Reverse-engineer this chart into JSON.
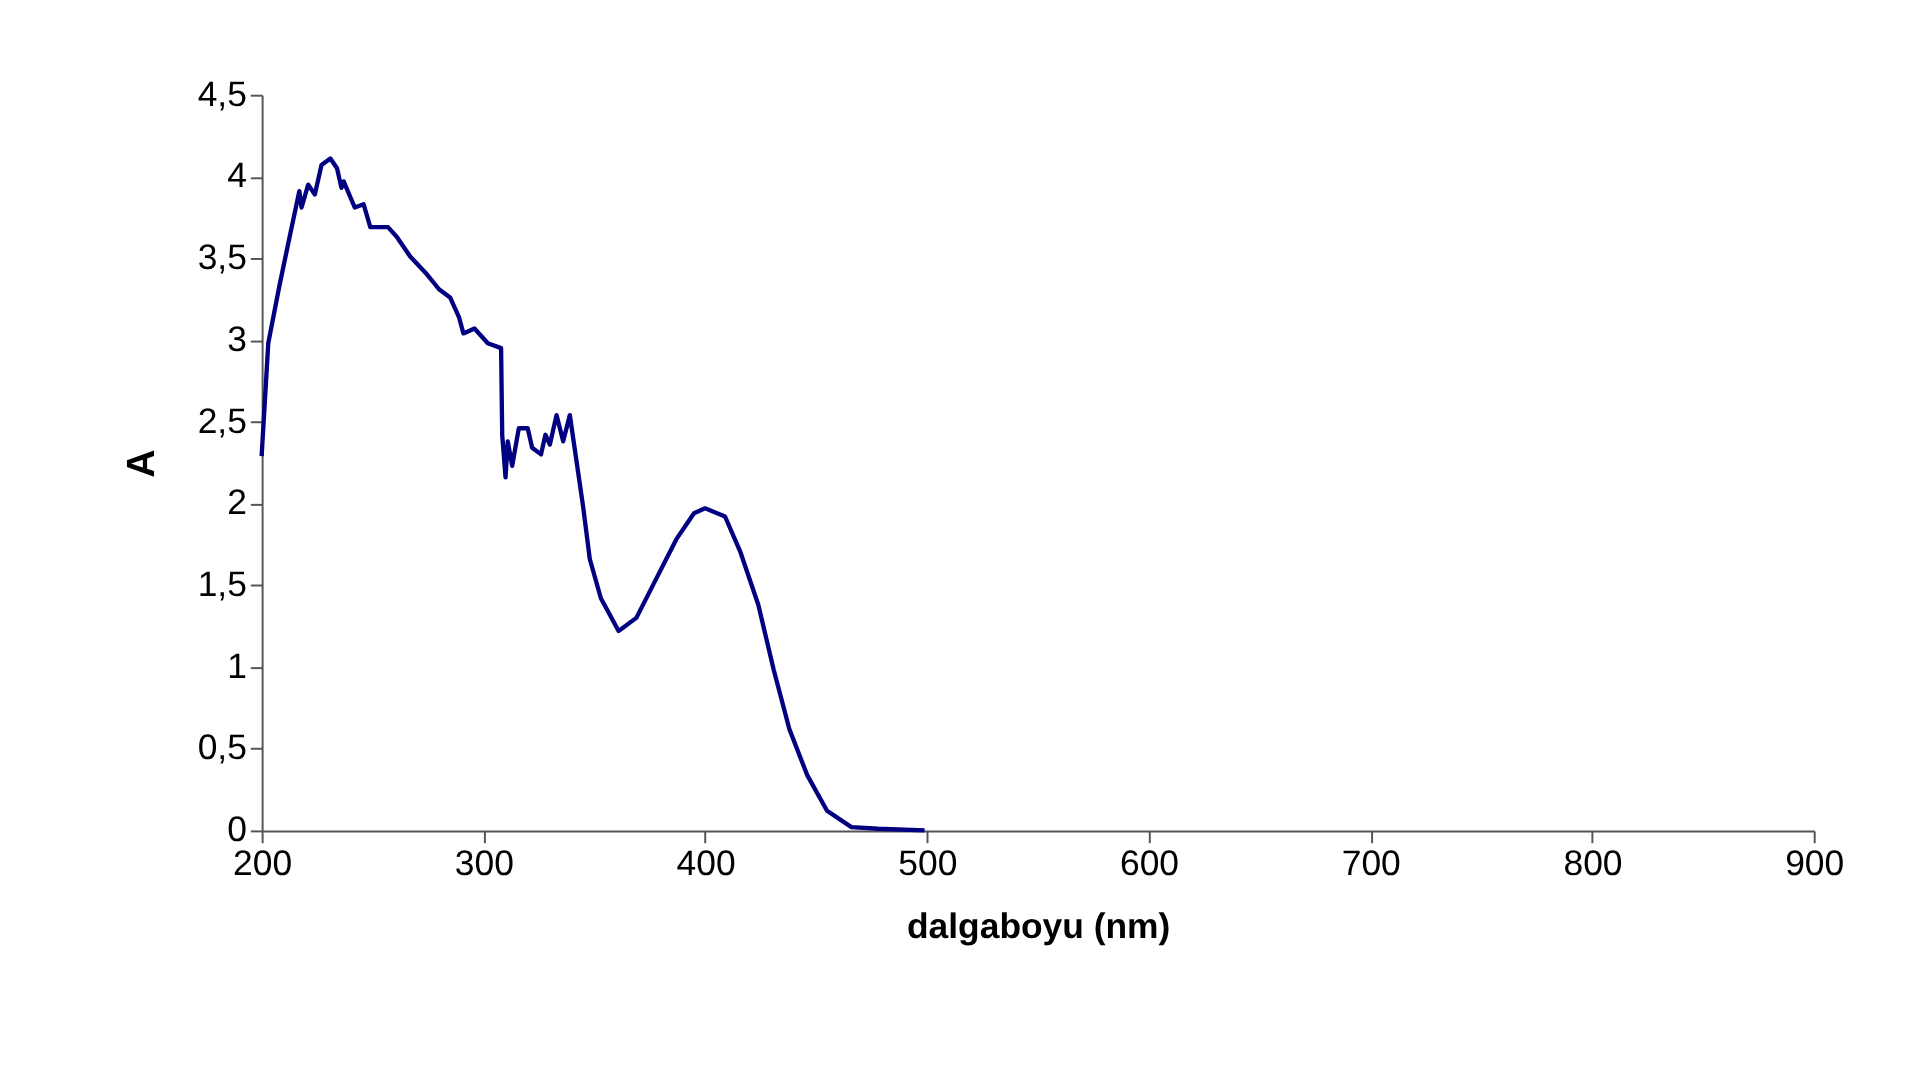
{
  "chart_data": {
    "type": "line",
    "xlabel": "dalgaboyu (nm)",
    "ylabel": "A",
    "grid": false,
    "line_style": "solid",
    "marker": "none",
    "xlim": [
      200,
      900
    ],
    "xticks": [
      200,
      300,
      400,
      500,
      600,
      700,
      800,
      900
    ],
    "ylim": [
      0,
      4.5
    ],
    "yticks": [
      0,
      {
        "value": 0.5,
        "label": "0,5"
      },
      1,
      {
        "value": 1.5,
        "label": "1,5"
      },
      2,
      {
        "value": 2.5,
        "label": "2,5"
      },
      3,
      {
        "value": 3.5,
        "label": "3,5"
      },
      4,
      {
        "value": 4.5,
        "label": "4,5"
      }
    ],
    "x": [
      200,
      203,
      208,
      212,
      217,
      218,
      221,
      224,
      227,
      231,
      234,
      236,
      237,
      242,
      246,
      249,
      257,
      261,
      267,
      274,
      280,
      285,
      289,
      291,
      296,
      302,
      308,
      308.5,
      310,
      311,
      313,
      316,
      320,
      322,
      326,
      328,
      330,
      333,
      336,
      339,
      342,
      345,
      348,
      353,
      361,
      369,
      378,
      387,
      395,
      400,
      409,
      416,
      424,
      431,
      438,
      446,
      455,
      466,
      478,
      499
    ],
    "series": [
      {
        "color": "#000080",
        "values": [
          2.29,
          2.98,
          3.33,
          3.59,
          3.91,
          3.81,
          3.95,
          3.89,
          4.07,
          4.11,
          4.05,
          3.93,
          3.97,
          3.81,
          3.83,
          3.69,
          3.69,
          3.63,
          3.51,
          3.41,
          3.31,
          3.26,
          3.14,
          3.04,
          3.07,
          2.98,
          2.95,
          2.42,
          2.16,
          2.38,
          2.23,
          2.46,
          2.46,
          2.34,
          2.3,
          2.42,
          2.36,
          2.54,
          2.38,
          2.54,
          2.26,
          1.98,
          1.66,
          1.42,
          1.22,
          1.3,
          1.54,
          1.78,
          1.94,
          1.97,
          1.92,
          1.7,
          1.38,
          0.98,
          0.62,
          0.34,
          0.12,
          0.02,
          0.01,
          0
        ]
      }
    ]
  }
}
